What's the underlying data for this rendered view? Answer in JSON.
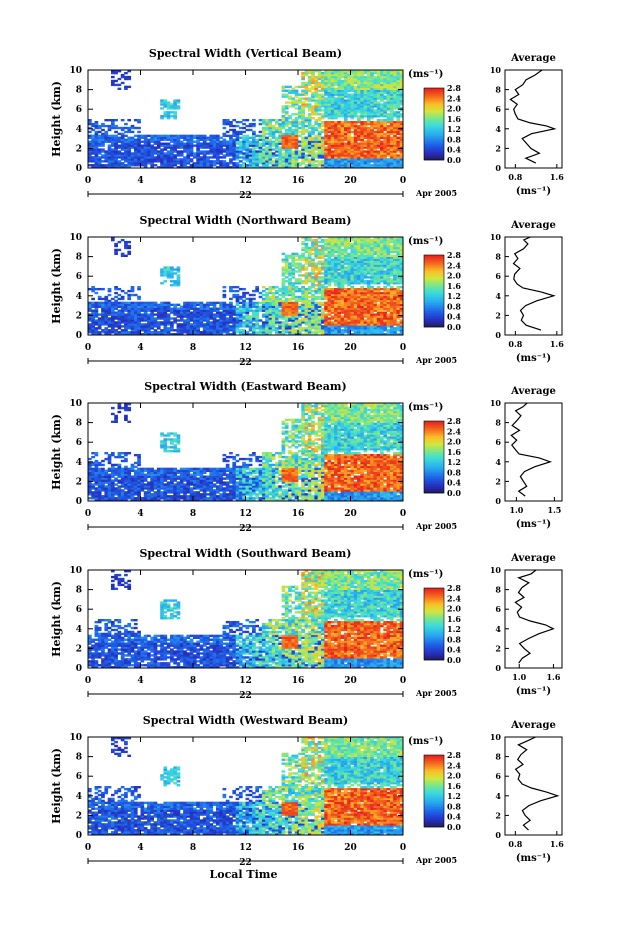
{
  "figure": {
    "xlabel_bottom": "Local Time",
    "date_label": "Apr 2005",
    "colorbar_unit": "(ms⁻¹)",
    "avg_unit": "(ms⁻¹)",
    "avg_title": "Average",
    "ylabel": "Height (km)"
  },
  "chart_data": [
    {
      "type": "heatmap",
      "title": "Spectral Width (Vertical Beam)",
      "xlim": [
        0,
        24
      ],
      "xticks": [
        "0",
        "4",
        "8",
        "12",
        "16",
        "20",
        "0"
      ],
      "day_label": "22",
      "ylim": [
        0,
        10
      ],
      "yticks": [
        "0",
        "2",
        "4",
        "6",
        "8",
        "10"
      ],
      "colorbar": {
        "range": [
          0.0,
          2.8
        ],
        "ticks": [
          "0.0",
          "0.4",
          "0.8",
          "1.2",
          "1.6",
          "2.0",
          "2.4",
          "2.8"
        ]
      },
      "average": {
        "title": "Average",
        "xticks": [
          "0.8",
          "1.6"
        ],
        "xlim": [
          0.6,
          1.7
        ],
        "profile": [
          [
            0.5,
            1.2
          ],
          [
            1.0,
            1.0
          ],
          [
            1.5,
            1.25
          ],
          [
            2.0,
            1.1
          ],
          [
            2.5,
            1.0
          ],
          [
            3.0,
            0.95
          ],
          [
            3.5,
            1.1
          ],
          [
            4.0,
            1.55
          ],
          [
            4.3,
            1.4
          ],
          [
            4.6,
            1.1
          ],
          [
            5.0,
            0.85
          ],
          [
            5.5,
            0.8
          ],
          [
            6.0,
            0.75
          ],
          [
            6.5,
            0.85
          ],
          [
            7.0,
            0.7
          ],
          [
            7.5,
            0.85
          ],
          [
            8.0,
            0.8
          ],
          [
            8.5,
            0.95
          ],
          [
            9.0,
            1.0
          ],
          [
            9.5,
            1.2
          ],
          [
            10.0,
            1.3
          ]
        ]
      }
    },
    {
      "type": "heatmap",
      "title": "Spectral Width (Northward Beam)",
      "xlim": [
        0,
        24
      ],
      "xticks": [
        "0",
        "4",
        "8",
        "12",
        "16",
        "20",
        "0"
      ],
      "day_label": "22",
      "ylim": [
        0,
        10
      ],
      "yticks": [
        "0",
        "2",
        "4",
        "6",
        "8",
        "10"
      ],
      "colorbar": {
        "range": [
          0.0,
          2.8
        ],
        "ticks": [
          "0.0",
          "0.4",
          "0.8",
          "1.2",
          "1.6",
          "2.0",
          "2.4",
          "2.8"
        ]
      },
      "average": {
        "title": "Average",
        "xticks": [
          "0.8",
          "1.6"
        ],
        "xlim": [
          0.6,
          1.7
        ],
        "profile": [
          [
            0.5,
            1.3
          ],
          [
            1.0,
            1.0
          ],
          [
            1.5,
            0.9
          ],
          [
            2.0,
            0.95
          ],
          [
            2.5,
            0.9
          ],
          [
            3.0,
            1.0
          ],
          [
            3.5,
            1.2
          ],
          [
            4.0,
            1.55
          ],
          [
            4.4,
            1.3
          ],
          [
            4.8,
            0.95
          ],
          [
            5.2,
            0.85
          ],
          [
            5.7,
            0.75
          ],
          [
            6.2,
            0.8
          ],
          [
            6.8,
            0.9
          ],
          [
            7.3,
            0.75
          ],
          [
            7.8,
            0.85
          ],
          [
            8.3,
            0.8
          ],
          [
            8.8,
            0.95
          ],
          [
            9.3,
            1.05
          ],
          [
            9.7,
            0.95
          ],
          [
            10.0,
            1.1
          ]
        ]
      }
    },
    {
      "type": "heatmap",
      "title": "Spectral Width (Eastward Beam)",
      "xlim": [
        0,
        24
      ],
      "xticks": [
        "0",
        "4",
        "8",
        "12",
        "16",
        "20",
        "0"
      ],
      "day_label": "22",
      "ylim": [
        0,
        10
      ],
      "yticks": [
        "0",
        "2",
        "4",
        "6",
        "8",
        "10"
      ],
      "colorbar": {
        "range": [
          0.0,
          2.8
        ],
        "ticks": [
          "0.0",
          "0.4",
          "0.8",
          "1.2",
          "1.6",
          "2.0",
          "2.4",
          "2.8"
        ]
      },
      "average": {
        "title": "Average",
        "xticks": [
          "1.0",
          "1.5"
        ],
        "xlim": [
          0.85,
          1.6
        ],
        "profile": [
          [
            0.5,
            1.1
          ],
          [
            1.0,
            1.05
          ],
          [
            1.5,
            1.15
          ],
          [
            2.0,
            1.1
          ],
          [
            2.5,
            1.05
          ],
          [
            3.0,
            1.1
          ],
          [
            3.5,
            1.25
          ],
          [
            4.0,
            1.45
          ],
          [
            4.4,
            1.3
          ],
          [
            4.8,
            1.05
          ],
          [
            5.2,
            1.0
          ],
          [
            5.7,
            0.95
          ],
          [
            6.2,
            1.0
          ],
          [
            6.7,
            0.95
          ],
          [
            7.2,
            1.05
          ],
          [
            7.7,
            0.95
          ],
          [
            8.2,
            1.0
          ],
          [
            8.7,
            1.05
          ],
          [
            9.2,
            1.0
          ],
          [
            9.6,
            1.1
          ],
          [
            10.0,
            1.15
          ]
        ]
      }
    },
    {
      "type": "heatmap",
      "title": "Spectral Width (Southward Beam)",
      "xlim": [
        0,
        24
      ],
      "xticks": [
        "0",
        "4",
        "8",
        "12",
        "16",
        "20",
        "0"
      ],
      "day_label": "22",
      "ylim": [
        0,
        10
      ],
      "yticks": [
        "0",
        "2",
        "4",
        "6",
        "8",
        "10"
      ],
      "colorbar": {
        "range": [
          0.0,
          2.8
        ],
        "ticks": [
          "0.0",
          "0.4",
          "0.8",
          "1.2",
          "1.6",
          "2.0",
          "2.4",
          "2.8"
        ]
      },
      "average": {
        "title": "Average",
        "xticks": [
          "1.0",
          "1.6"
        ],
        "xlim": [
          0.75,
          1.75
        ],
        "profile": [
          [
            0.5,
            1.0
          ],
          [
            1.0,
            1.05
          ],
          [
            1.5,
            1.2
          ],
          [
            2.0,
            1.1
          ],
          [
            2.5,
            1.0
          ],
          [
            3.0,
            1.15
          ],
          [
            3.5,
            1.35
          ],
          [
            4.0,
            1.6
          ],
          [
            4.4,
            1.45
          ],
          [
            4.8,
            1.2
          ],
          [
            5.2,
            1.0
          ],
          [
            5.7,
            0.95
          ],
          [
            6.2,
            1.05
          ],
          [
            6.7,
            0.95
          ],
          [
            7.2,
            1.1
          ],
          [
            7.7,
            1.0
          ],
          [
            8.2,
            1.05
          ],
          [
            8.7,
            1.15
          ],
          [
            9.2,
            1.0
          ],
          [
            9.6,
            1.2
          ],
          [
            10.0,
            1.3
          ]
        ]
      }
    },
    {
      "type": "heatmap",
      "title": "Spectral Width (Westward Beam)",
      "xlim": [
        0,
        24
      ],
      "xticks": [
        "0",
        "4",
        "8",
        "12",
        "16",
        "20",
        "0"
      ],
      "day_label": "22",
      "ylim": [
        0,
        10
      ],
      "yticks": [
        "0",
        "2",
        "4",
        "6",
        "8",
        "10"
      ],
      "colorbar": {
        "range": [
          0.0,
          2.8
        ],
        "ticks": [
          "0.0",
          "0.4",
          "0.8",
          "1.2",
          "1.6",
          "2.0",
          "2.4",
          "2.8"
        ]
      },
      "average": {
        "title": "Average",
        "xticks": [
          "0.8",
          "1.6"
        ],
        "xlim": [
          0.6,
          1.7
        ],
        "profile": [
          [
            0.5,
            1.05
          ],
          [
            1.0,
            0.95
          ],
          [
            1.5,
            1.1
          ],
          [
            2.0,
            1.0
          ],
          [
            2.5,
            0.95
          ],
          [
            3.0,
            1.05
          ],
          [
            3.5,
            1.3
          ],
          [
            4.0,
            1.6
          ],
          [
            4.4,
            1.4
          ],
          [
            4.8,
            1.1
          ],
          [
            5.2,
            0.95
          ],
          [
            5.7,
            0.85
          ],
          [
            6.2,
            0.9
          ],
          [
            6.7,
            0.8
          ],
          [
            7.2,
            0.95
          ],
          [
            7.7,
            0.85
          ],
          [
            8.2,
            0.9
          ],
          [
            8.7,
            1.0
          ],
          [
            9.2,
            0.85
          ],
          [
            9.6,
            1.05
          ],
          [
            10.0,
            1.2
          ]
        ]
      }
    }
  ]
}
